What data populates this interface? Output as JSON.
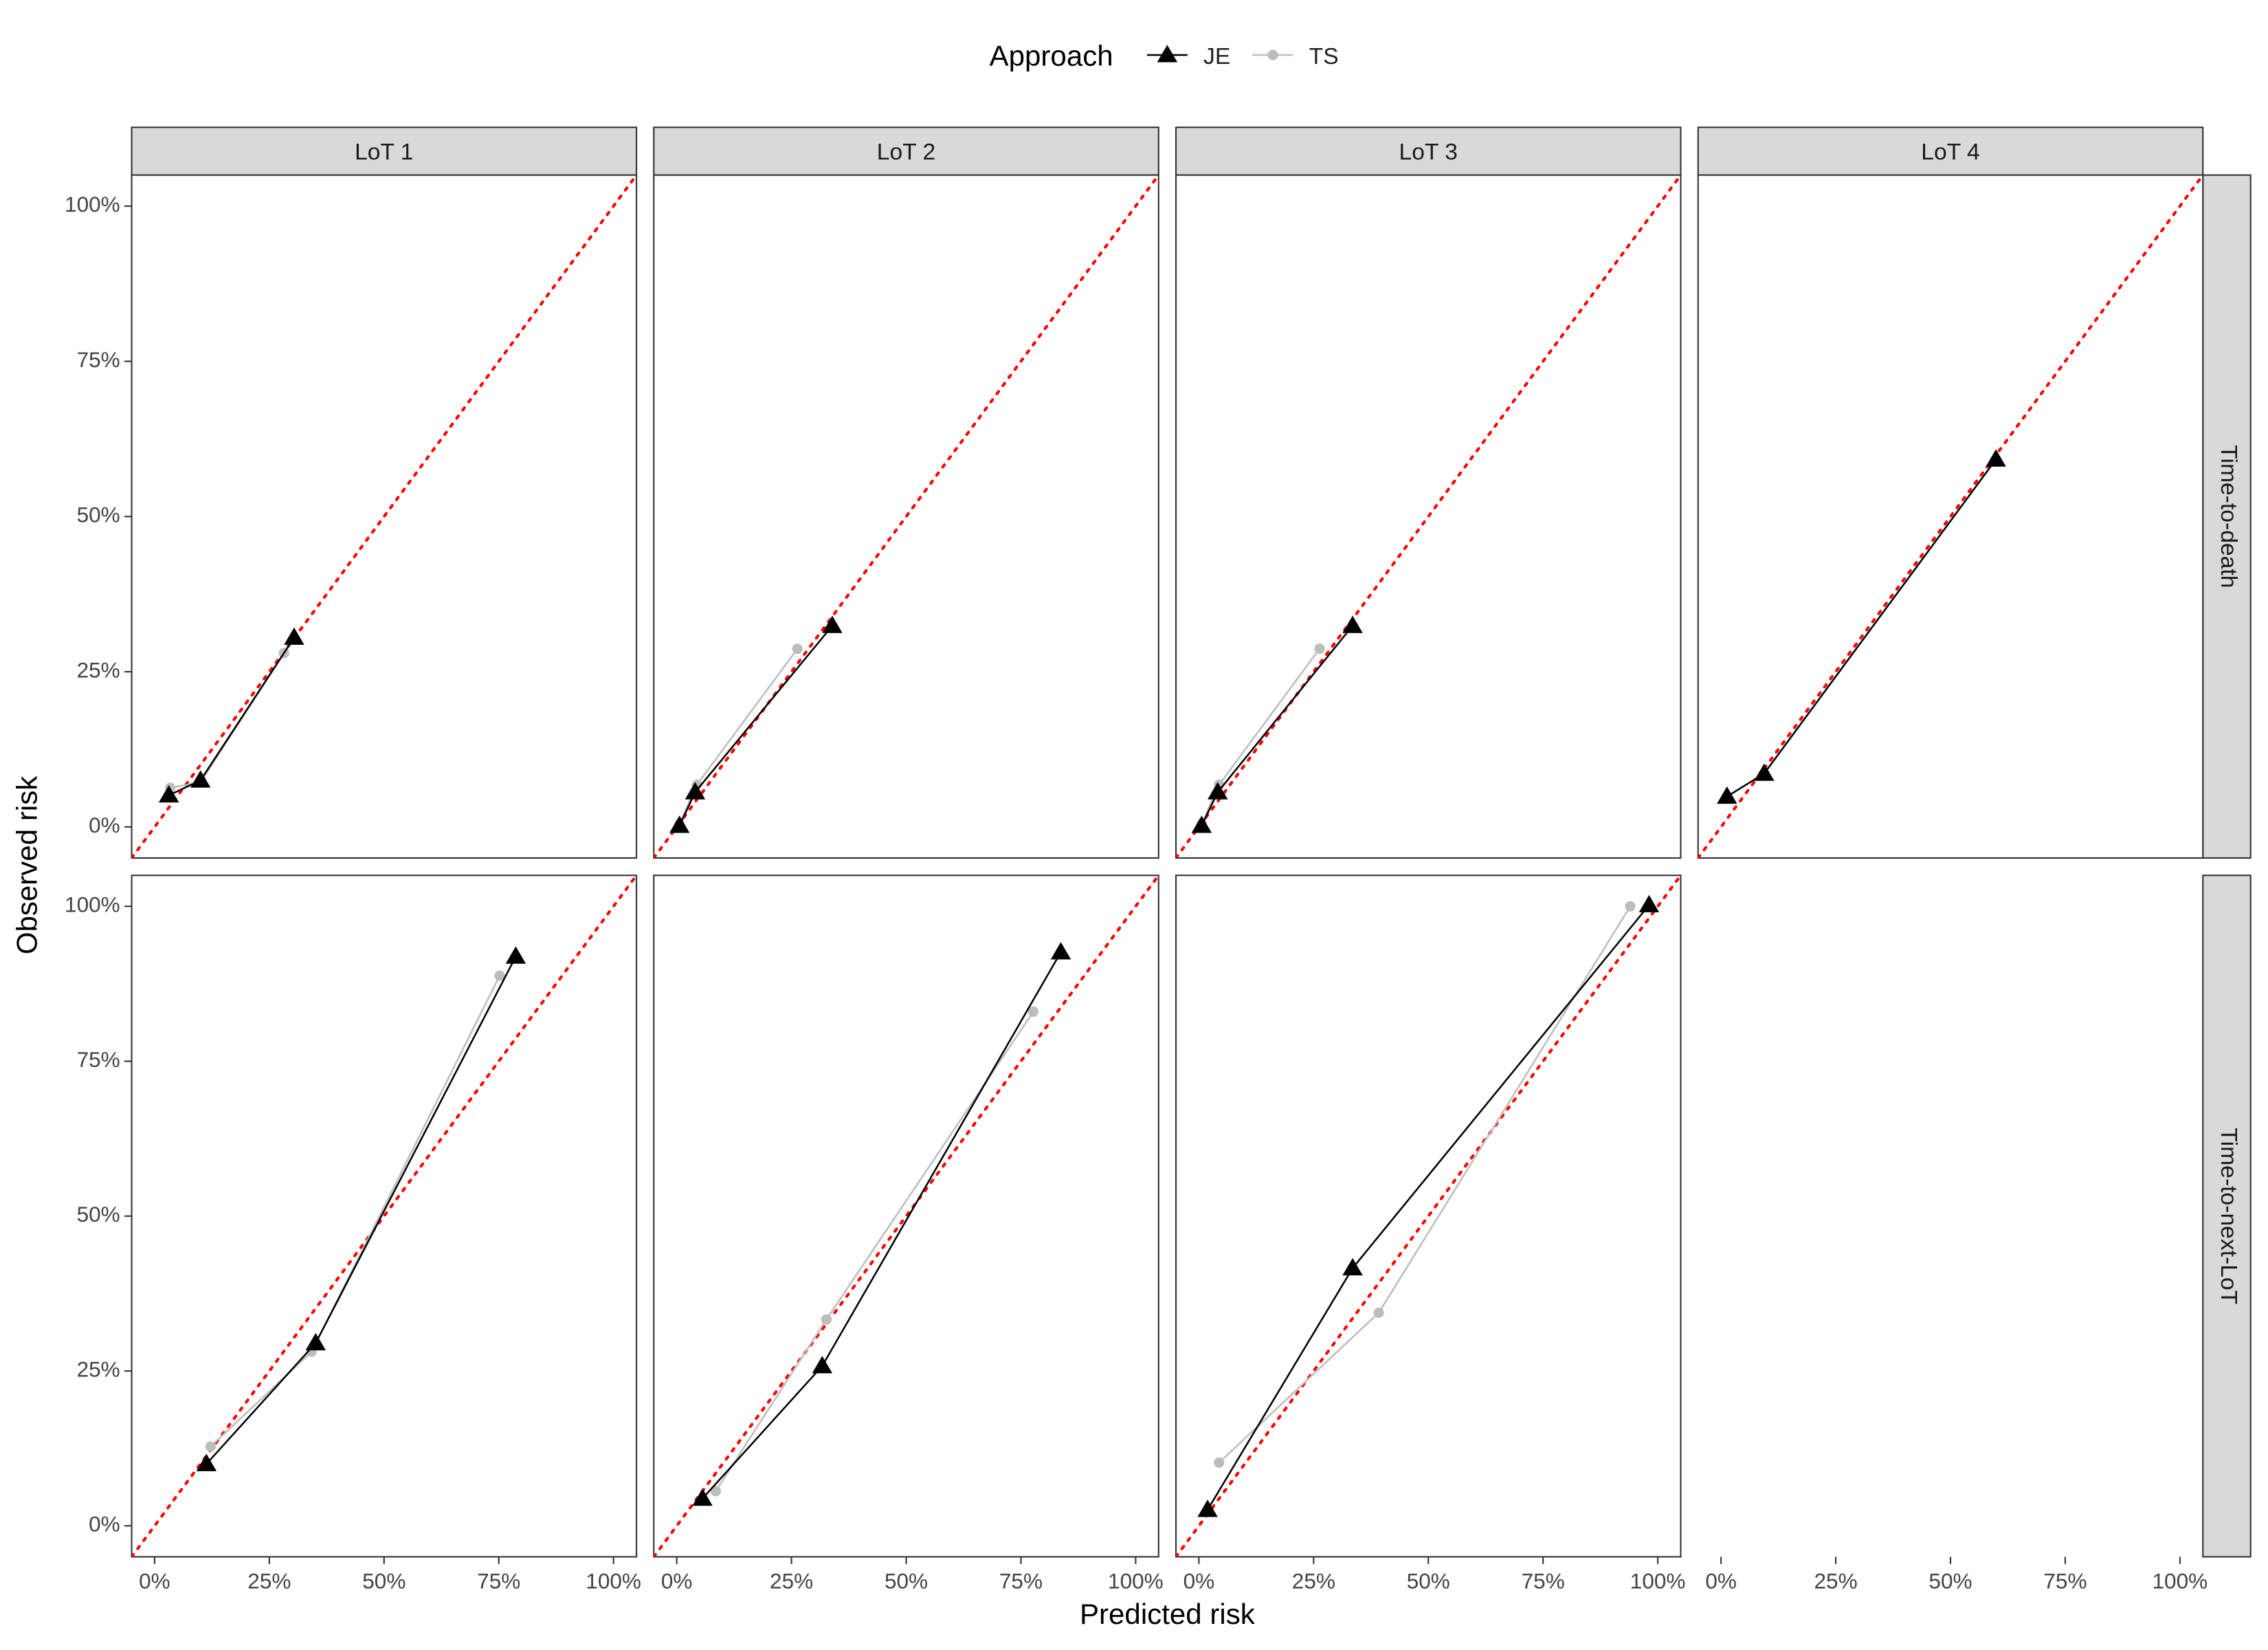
{
  "chart_data": {
    "type": "line",
    "legend_title": "Approach",
    "xlabel": "Predicted risk",
    "ylabel": "Observed risk",
    "columns": [
      "LoT 1",
      "LoT 2",
      "LoT 3",
      "LoT 4"
    ],
    "rows": [
      "Time-to-death",
      "Time-to-next-LoT"
    ],
    "series": [
      {
        "name": "JE",
        "color": "#000000",
        "marker": "triangle"
      },
      {
        "name": "TS",
        "color": "#bdbdbd",
        "marker": "circle"
      }
    ],
    "reference_line_color": "#ff0000",
    "xlim": [
      -5,
      105
    ],
    "ylim": [
      -5,
      105
    ],
    "xticks": [
      {
        "value": 0,
        "label": "0%"
      },
      {
        "value": 25,
        "label": "25%"
      },
      {
        "value": 50,
        "label": "50%"
      },
      {
        "value": 75,
        "label": "75%"
      },
      {
        "value": 100,
        "label": "100%"
      }
    ],
    "yticks": [
      {
        "value": 0,
        "label": "0%"
      },
      {
        "value": 25,
        "label": "25%"
      },
      {
        "value": 50,
        "label": "50%"
      },
      {
        "value": 75,
        "label": "75%"
      },
      {
        "value": 100,
        "label": "100%"
      }
    ],
    "panels": [
      {
        "row": 0,
        "col": 0,
        "data": [
          {
            "x": [
              3.1,
              10,
              30.4
            ],
            "y": [
              5.1,
              7.5,
              30.5
            ]
          },
          {
            "x": [
              3.4,
              10,
              28.2
            ],
            "y": [
              6.3,
              7.2,
              28
            ]
          }
        ]
      },
      {
        "row": 0,
        "col": 1,
        "data": [
          {
            "x": [
              0.6,
              4,
              33.9
            ],
            "y": [
              0.2,
              5.6,
              32.4
            ]
          },
          {
            "x": [
              0.6,
              4.4,
              26.3
            ],
            "y": [
              0.5,
              6.8,
              28.7
            ]
          }
        ]
      },
      {
        "row": 0,
        "col": 2,
        "data": [
          {
            "x": [
              0.6,
              4.1,
              33.5
            ],
            "y": [
              0.2,
              5.6,
              32.4
            ]
          },
          {
            "x": [
              0.6,
              4.4,
              26.3
            ],
            "y": [
              0.5,
              6.8,
              28.7
            ]
          }
        ]
      },
      {
        "row": 0,
        "col": 3,
        "data": [
          {
            "x": [
              1.3,
              9.4,
              59.9
            ],
            "y": [
              4.9,
              8.6,
              59.2
            ]
          },
          {
            "x": [
              1.3,
              9.4,
              59.9
            ],
            "y": [
              4.9,
              8.6,
              59.2
            ]
          }
        ]
      },
      {
        "row": 1,
        "col": 0,
        "data": [
          {
            "x": [
              11.3,
              35.1,
              78.7
            ],
            "y": [
              10,
              29.5,
              91.9
            ]
          },
          {
            "x": [
              12.2,
              34.2,
              75.2
            ],
            "y": [
              12.8,
              28.1,
              88.8
            ]
          }
        ]
      },
      {
        "row": 1,
        "col": 1,
        "data": [
          {
            "x": [
              5.6,
              31.7,
              83.7
            ],
            "y": [
              4.4,
              25.8,
              92.6
            ]
          },
          {
            "x": [
              8.5,
              32.6,
              77.7
            ],
            "y": [
              5.6,
              33.3,
              83
            ]
          }
        ]
      },
      {
        "row": 1,
        "col": 2,
        "data": [
          {
            "x": [
              1.9,
              33.5,
              98.1
            ],
            "y": [
              2.6,
              41.6,
              100.2
            ]
          },
          {
            "x": [
              4.4,
              39.2,
              94
            ],
            "y": [
              10.2,
              34.4,
              100
            ]
          }
        ]
      }
    ]
  }
}
